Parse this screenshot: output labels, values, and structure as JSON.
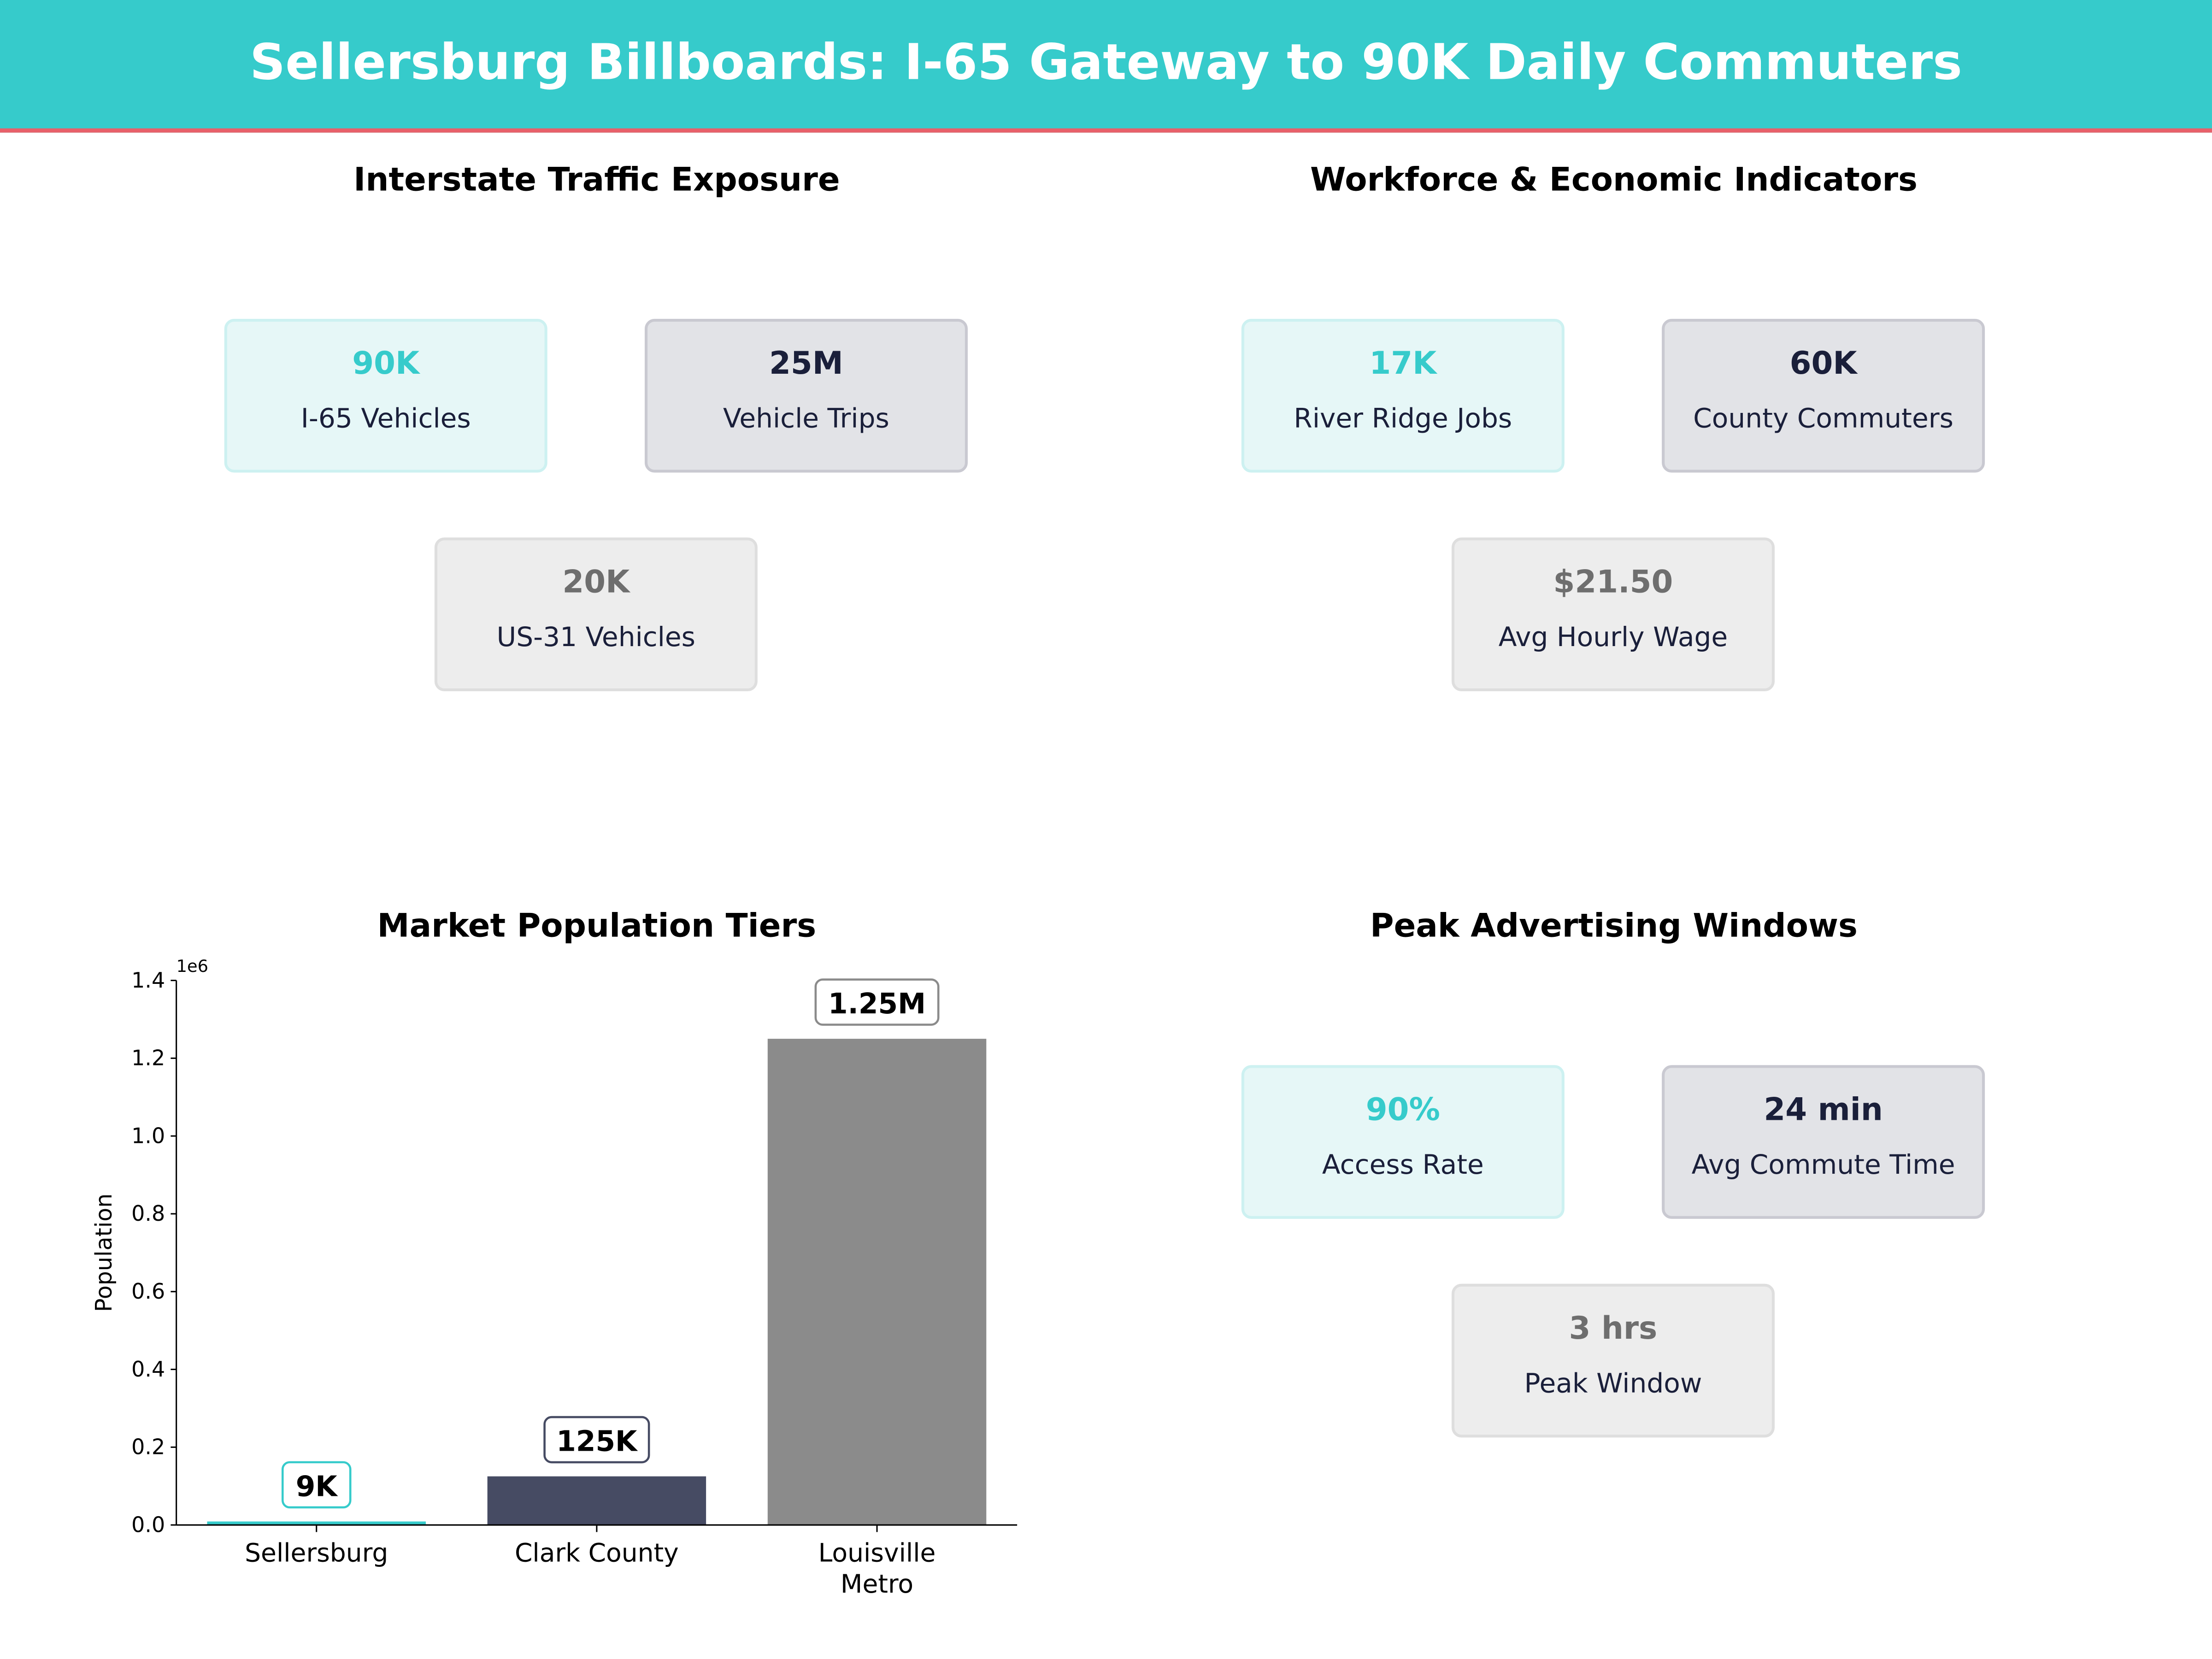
{
  "title": "Sellersburg Billboards: I-65 Gateway to 90K Daily Commuters",
  "colors": {
    "accent": "#36CBCB",
    "dark": "#464B63",
    "gray": "#8B8B8B",
    "header_rule": "#E8606A"
  },
  "panels": {
    "traffic": {
      "title": "Interstate Traffic Exposure",
      "cards": [
        {
          "value": "90K",
          "label": "I-65 Vehicles"
        },
        {
          "value": "25M",
          "label": "Vehicle Trips"
        },
        {
          "value": "20K",
          "label": "US-31 Vehicles"
        }
      ]
    },
    "workforce": {
      "title": "Workforce & Economic Indicators",
      "cards": [
        {
          "value": "17K",
          "label": "River Ridge Jobs"
        },
        {
          "value": "60K",
          "label": "County Commuters"
        },
        {
          "value": "$21.50",
          "label": "Avg Hourly Wage"
        }
      ]
    },
    "peak": {
      "title": "Peak Advertising Windows",
      "cards": [
        {
          "value": "90%",
          "label": "Access Rate"
        },
        {
          "value": "24 min",
          "label": "Avg Commute Time"
        },
        {
          "value": "3 hrs",
          "label": "Peak Window"
        }
      ]
    }
  },
  "chart_data": {
    "type": "bar",
    "title": "Market Population Tiers",
    "ylabel": "Population",
    "xlabel": "",
    "offset_label": "1e6",
    "categories": [
      [
        "Sellersburg"
      ],
      [
        "Clark County"
      ],
      [
        "Louisville",
        "Metro"
      ]
    ],
    "values": [
      9000,
      125000,
      1250000
    ],
    "data_labels": [
      "9K",
      "125K",
      "1.25M"
    ],
    "colors": [
      "#36CBCB",
      "#464B63",
      "#8B8B8B"
    ],
    "ylim": [
      0,
      1400000
    ],
    "yticks": [
      0,
      200000,
      400000,
      600000,
      800000,
      1000000,
      1200000,
      1400000
    ],
    "ytick_labels": [
      "0.0",
      "0.2",
      "0.4",
      "0.6",
      "0.8",
      "1.0",
      "1.2",
      "1.4"
    ],
    "grid": false
  }
}
